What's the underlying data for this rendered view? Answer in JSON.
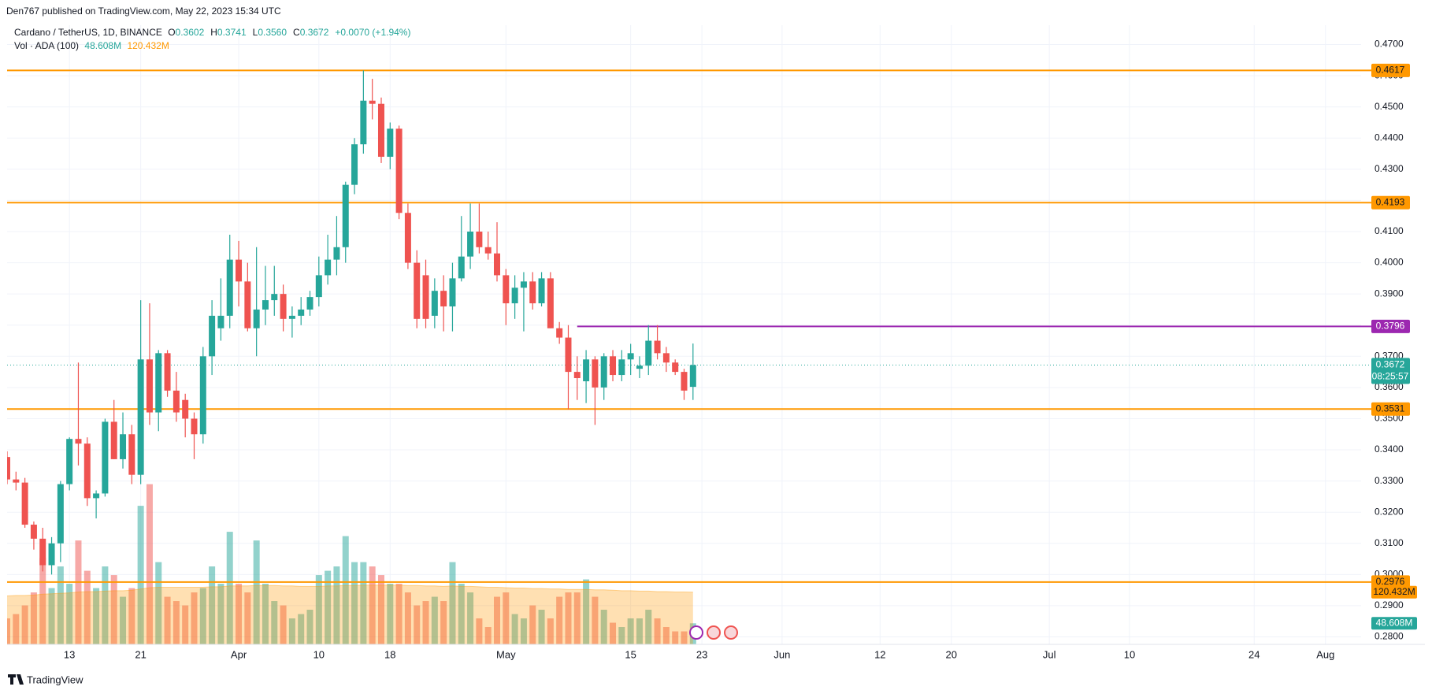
{
  "header": {
    "published": "Den767 published on TradingView.com, May 22, 2023 15:34 UTC"
  },
  "chart_data": {
    "type": "candlestick",
    "title": "Cardano / TetherUS, 1D, BINANCE",
    "legend_ohlc": [
      {
        "key": "O",
        "value": "0.3602"
      },
      {
        "key": "H",
        "value": "0.3741"
      },
      {
        "key": "L",
        "value": "0.3560"
      },
      {
        "key": "C",
        "value": "0.3672"
      }
    ],
    "legend_change": "+0.0070 (+1.94%)",
    "volume_title": "Vol · ADA (100)",
    "x": [
      "03-06",
      "03-07",
      "03-08",
      "03-09",
      "03-10",
      "03-11",
      "03-12",
      "03-13",
      "03-14",
      "03-15",
      "03-16",
      "03-17",
      "03-18",
      "03-19",
      "03-20",
      "03-21",
      "03-22",
      "03-23",
      "03-24",
      "03-25",
      "03-26",
      "03-27",
      "03-28",
      "03-29",
      "03-30",
      "03-31",
      "04-01",
      "04-02",
      "04-03",
      "04-04",
      "04-05",
      "04-06",
      "04-07",
      "04-08",
      "04-09",
      "04-10",
      "04-11",
      "04-12",
      "04-13",
      "04-14",
      "04-15",
      "04-16",
      "04-17",
      "04-18",
      "04-19",
      "04-20",
      "04-21",
      "04-22",
      "04-23",
      "04-24",
      "04-25",
      "04-26",
      "04-27",
      "04-28",
      "04-29",
      "04-30",
      "05-01",
      "05-02",
      "05-03",
      "05-04",
      "05-05",
      "05-06",
      "05-07",
      "05-08",
      "05-09",
      "05-10",
      "05-11",
      "05-12",
      "05-13",
      "05-14",
      "05-15",
      "05-16",
      "05-17",
      "05-18",
      "05-19",
      "05-20",
      "05-21",
      "05-22"
    ],
    "open": [
      0.3377,
      0.3305,
      0.3295,
      0.316,
      0.3115,
      0.303,
      0.31,
      0.329,
      0.3435,
      0.342,
      0.3245,
      0.326,
      0.349,
      0.337,
      0.345,
      0.332,
      0.369,
      0.352,
      0.371,
      0.359,
      0.356,
      0.35,
      0.345,
      0.37,
      0.379,
      0.383,
      0.401,
      0.394,
      0.379,
      0.385,
      0.388,
      0.39,
      0.382,
      0.383,
      0.385,
      0.389,
      0.396,
      0.401,
      0.405,
      0.425,
      0.438,
      0.452,
      0.451,
      0.434,
      0.443,
      0.416,
      0.4,
      0.396,
      0.383,
      0.391,
      0.386,
      0.395,
      0.402,
      0.41,
      0.405,
      0.403,
      0.396,
      0.387,
      0.392,
      0.394,
      0.387,
      0.395,
      0.379,
      0.376,
      0.365,
      0.362,
      0.369,
      0.36,
      0.37,
      0.364,
      0.369,
      0.366,
      0.367,
      0.375,
      0.371,
      0.368,
      0.365,
      0.3602
    ],
    "high": [
      0.3395,
      0.333,
      0.331,
      0.317,
      0.315,
      0.312,
      0.33,
      0.344,
      0.368,
      0.344,
      0.327,
      0.35,
      0.356,
      0.352,
      0.348,
      0.388,
      0.387,
      0.372,
      0.372,
      0.365,
      0.358,
      0.352,
      0.373,
      0.388,
      0.395,
      0.409,
      0.407,
      0.4,
      0.405,
      0.399,
      0.399,
      0.393,
      0.386,
      0.389,
      0.391,
      0.402,
      0.409,
      0.415,
      0.426,
      0.44,
      0.4617,
      0.459,
      0.453,
      0.445,
      0.444,
      0.419,
      0.404,
      0.401,
      0.395,
      0.396,
      0.4,
      0.415,
      0.419,
      0.419,
      0.41,
      0.413,
      0.398,
      0.396,
      0.397,
      0.397,
      0.397,
      0.397,
      0.381,
      0.38,
      0.37,
      0.372,
      0.37,
      0.371,
      0.372,
      0.372,
      0.374,
      0.37,
      0.38,
      0.38,
      0.373,
      0.369,
      0.366,
      0.3741
    ],
    "low": [
      0.329,
      0.327,
      0.315,
      0.308,
      0.301,
      0.3,
      0.304,
      0.327,
      0.335,
      0.322,
      0.318,
      0.325,
      0.337,
      0.334,
      0.329,
      0.329,
      0.348,
      0.346,
      0.357,
      0.349,
      0.344,
      0.337,
      0.342,
      0.364,
      0.375,
      0.379,
      0.386,
      0.378,
      0.37,
      0.38,
      0.383,
      0.378,
      0.376,
      0.38,
      0.383,
      0.386,
      0.393,
      0.396,
      0.4,
      0.422,
      0.435,
      0.446,
      0.432,
      0.43,
      0.414,
      0.398,
      0.379,
      0.379,
      0.379,
      0.378,
      0.378,
      0.394,
      0.398,
      0.403,
      0.401,
      0.394,
      0.38,
      0.382,
      0.378,
      0.385,
      0.386,
      0.379,
      0.374,
      0.353,
      0.356,
      0.355,
      0.348,
      0.356,
      0.362,
      0.362,
      0.364,
      0.363,
      0.364,
      0.369,
      0.365,
      0.364,
      0.356,
      0.356
    ],
    "close": [
      0.3305,
      0.3295,
      0.316,
      0.3115,
      0.303,
      0.31,
      0.329,
      0.3435,
      0.342,
      0.3245,
      0.326,
      0.349,
      0.337,
      0.345,
      0.332,
      0.369,
      0.352,
      0.371,
      0.359,
      0.352,
      0.35,
      0.345,
      0.37,
      0.383,
      0.383,
      0.401,
      0.394,
      0.379,
      0.385,
      0.388,
      0.39,
      0.382,
      0.383,
      0.385,
      0.389,
      0.396,
      0.401,
      0.405,
      0.425,
      0.438,
      0.452,
      0.451,
      0.434,
      0.443,
      0.416,
      0.4,
      0.382,
      0.382,
      0.391,
      0.386,
      0.395,
      0.402,
      0.41,
      0.405,
      0.403,
      0.396,
      0.387,
      0.392,
      0.394,
      0.387,
      0.395,
      0.379,
      0.376,
      0.365,
      0.363,
      0.369,
      0.36,
      0.37,
      0.364,
      0.369,
      0.371,
      0.367,
      0.375,
      0.371,
      0.368,
      0.365,
      0.359,
      0.3672
    ],
    "up_color": "#26a69a",
    "down_color": "#ef5350",
    "volume": {
      "values": [
        60,
        70,
        90,
        120,
        200,
        130,
        180,
        140,
        240,
        170,
        130,
        180,
        160,
        110,
        130,
        320,
        370,
        190,
        110,
        100,
        90,
        120,
        130,
        180,
        140,
        260,
        140,
        120,
        240,
        140,
        100,
        90,
        60,
        70,
        80,
        160,
        170,
        180,
        250,
        190,
        190,
        180,
        160,
        140,
        140,
        120,
        90,
        100,
        110,
        100,
        190,
        140,
        120,
        60,
        40,
        110,
        120,
        70,
        60,
        90,
        80,
        60,
        110,
        120,
        120,
        150,
        110,
        80,
        50,
        40,
        60,
        60,
        80,
        60,
        40,
        30,
        30,
        48.608
      ],
      "ma_values": [
        112,
        113,
        113,
        114,
        116,
        117,
        118,
        119,
        121,
        122,
        122,
        123,
        124,
        124,
        125,
        128,
        131,
        132,
        132,
        132,
        132,
        132,
        132,
        133,
        133,
        135,
        135,
        135,
        136,
        136,
        136,
        135,
        135,
        134,
        134,
        134,
        135,
        135,
        136,
        136,
        137,
        137,
        137,
        137,
        137,
        136,
        136,
        135,
        135,
        134,
        135,
        134,
        134,
        133,
        132,
        132,
        131,
        130,
        130,
        129,
        129,
        128,
        128,
        127,
        127,
        127,
        126,
        126,
        125,
        124,
        124,
        123,
        123,
        122,
        122,
        121,
        121,
        120.432
      ],
      "value_label": "48.608M",
      "ma_label": "120.432M",
      "ylim": [
        0,
        1430
      ],
      "ma_color": "#ff9800"
    },
    "xlim": [
      "03-06",
      "08-05"
    ],
    "xticks": [
      {
        "value": "03-13",
        "label": "13"
      },
      {
        "value": "03-21",
        "label": "21"
      },
      {
        "value": "04-01",
        "label": "Apr"
      },
      {
        "value": "04-10",
        "label": "10"
      },
      {
        "value": "04-18",
        "label": "18"
      },
      {
        "value": "05-01",
        "label": "May"
      },
      {
        "value": "05-15",
        "label": "15"
      },
      {
        "value": "05-23",
        "label": "23"
      },
      {
        "value": "06-01",
        "label": "Jun"
      },
      {
        "value": "06-12",
        "label": "12"
      },
      {
        "value": "06-20",
        "label": "20"
      },
      {
        "value": "07-01",
        "label": "Jul"
      },
      {
        "value": "07-10",
        "label": "10"
      },
      {
        "value": "07-24",
        "label": "24"
      },
      {
        "value": "08-01",
        "label": "Aug"
      }
    ],
    "ylim": [
      0.2776,
      0.4762
    ],
    "yticks": [
      {
        "value": 0.28,
        "label": "0.2800"
      },
      {
        "value": 0.29,
        "label": "0.2900"
      },
      {
        "value": 0.3,
        "label": "0.3000"
      },
      {
        "value": 0.31,
        "label": "0.3100"
      },
      {
        "value": 0.32,
        "label": "0.3200"
      },
      {
        "value": 0.33,
        "label": "0.3300"
      },
      {
        "value": 0.34,
        "label": "0.3400"
      },
      {
        "value": 0.35,
        "label": "0.3500"
      },
      {
        "value": 0.36,
        "label": "0.3600"
      },
      {
        "value": 0.37,
        "label": "0.3700"
      },
      {
        "value": 0.38,
        "label": "0.3800"
      },
      {
        "value": 0.39,
        "label": "0.3900"
      },
      {
        "value": 0.4,
        "label": "0.4000"
      },
      {
        "value": 0.41,
        "label": "0.4100"
      },
      {
        "value": 0.42,
        "label": "0.4200"
      },
      {
        "value": 0.43,
        "label": "0.4300"
      },
      {
        "value": 0.44,
        "label": "0.4400"
      },
      {
        "value": 0.45,
        "label": "0.4500"
      },
      {
        "value": 0.46,
        "label": "0.4600"
      },
      {
        "value": 0.47,
        "label": "0.4700"
      }
    ],
    "grid": true,
    "levels": [
      {
        "value": 0.4617,
        "color": "#ff9800"
      },
      {
        "value": 0.4193,
        "color": "#ff9800"
      },
      {
        "value": 0.3531,
        "color": "#ff9800"
      },
      {
        "value": 0.2976,
        "color": "#ff9800"
      },
      {
        "value": 0.3796,
        "color": "#9c27b0",
        "from": "05-09"
      }
    ],
    "countdown": "08:25:57"
  },
  "footer": {
    "brand": "TradingView"
  }
}
